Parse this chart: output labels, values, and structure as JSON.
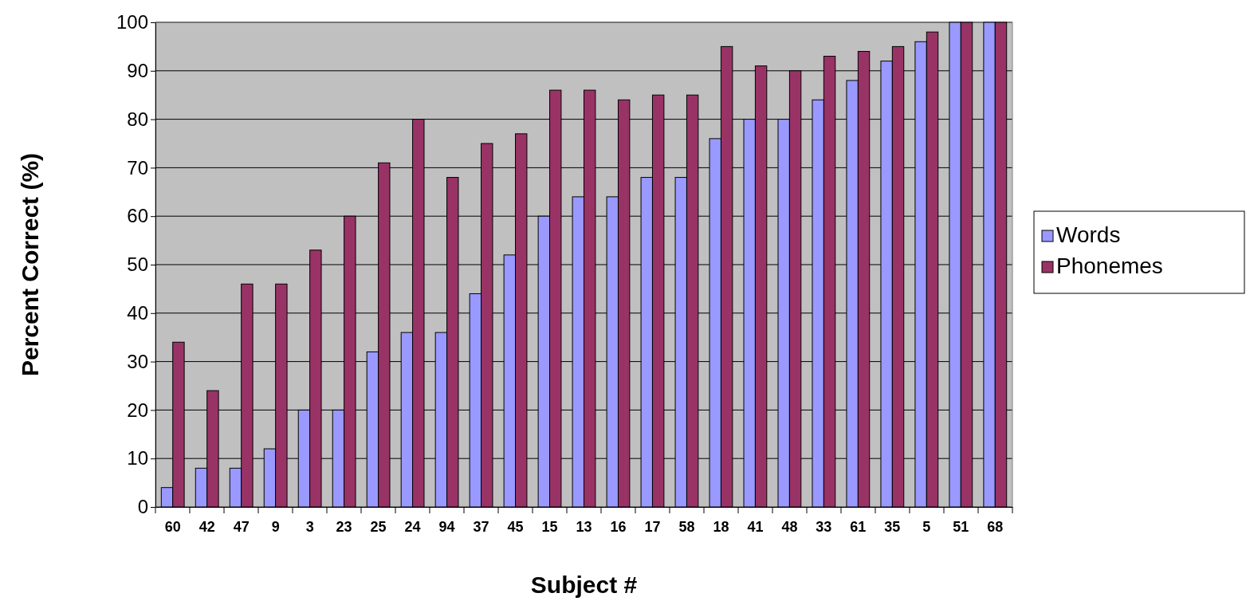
{
  "chart_data": {
    "type": "bar",
    "xlabel": "Subject #",
    "ylabel": "Percent Correct (%)",
    "categories": [
      "60",
      "42",
      "47",
      "9",
      "3",
      "23",
      "25",
      "24",
      "94",
      "37",
      "45",
      "15",
      "13",
      "16",
      "17",
      "58",
      "18",
      "41",
      "48",
      "33",
      "61",
      "35",
      "5",
      "51",
      "68"
    ],
    "series": [
      {
        "name": "Words",
        "color": "#9999ff",
        "values": [
          4,
          8,
          8,
          12,
          20,
          20,
          32,
          36,
          36,
          44,
          52,
          60,
          64,
          64,
          68,
          68,
          76,
          80,
          80,
          84,
          88,
          92,
          96,
          100,
          100
        ]
      },
      {
        "name": "Phonemes",
        "color": "#993366",
        "values": [
          34,
          24,
          46,
          46,
          53,
          60,
          71,
          80,
          68,
          75,
          77,
          86,
          86,
          84,
          85,
          85,
          95,
          91,
          90,
          93,
          94,
          95,
          98,
          100,
          100
        ]
      }
    ],
    "ylim": [
      0,
      100
    ],
    "yticks": [
      0,
      10,
      20,
      30,
      40,
      50,
      60,
      70,
      80,
      90,
      100
    ],
    "grid": "y",
    "legend": "right"
  }
}
